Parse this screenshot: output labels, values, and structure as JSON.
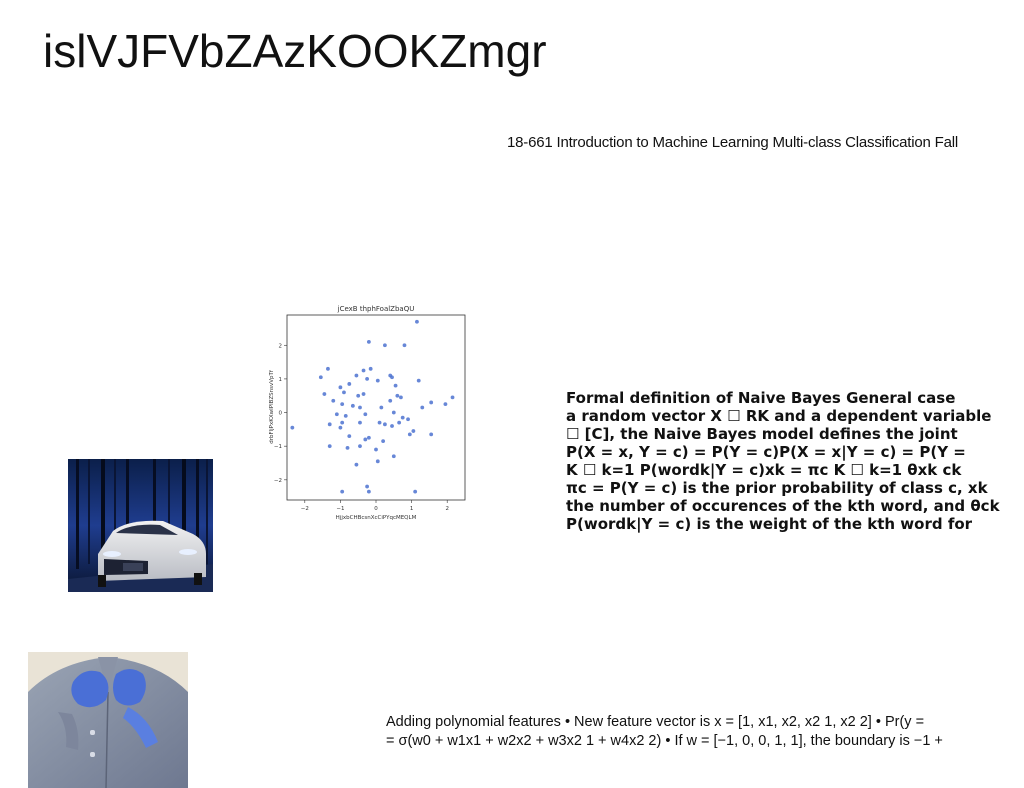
{
  "slide": {
    "title": "islVJFVbZAzKOOKZmgr",
    "course_line": "18-661 Introduction to Machine Learning Multi-class Classification Fall"
  },
  "formal_block": {
    "lines": [
      "Formal definition of Naive Bayes General case",
      "a random vector X ☐ RK and a dependent variable",
      "☐ [C], the Naive Bayes model defines the joint",
      "P(X = x, Y = c) = P(Y = c)P(X = x|Y = c) = P(Y =",
      "K ☐ k=1 P(wordk|Y = c)xk = πc K ☐ k=1 θxk ck",
      "πc = P(Y = c) is the prior probability of class c, xk",
      "the number of occurences of the kth word, and θck",
      "P(wordk|Y = c) is the weight of the kth word for"
    ]
  },
  "poly_block": {
    "lines": [
      "Adding polynomial features • New feature vector is x = [1, x1, x2, x2 1, x2 2] • Pr(y =",
      "= σ(w0 + w1x1 + w2x2 + w3x2 1 + w4x2 2) • If w = [−1, 0, 0, 1, 1], the boundary is −1 +"
    ]
  },
  "images": {
    "car": "car-photo",
    "person": "person-photo"
  },
  "chart_data": {
    "type": "scatter",
    "title": "jCexB thphFoalZbaQU",
    "xlabel": "HjjxbCHBcsnXcCiPYqcMEQLM",
    "ylabel": "drbFljPxKXwIPlBZSnsvVpTf",
    "xlim": [
      -2.5,
      2.5
    ],
    "ylim": [
      -2.6,
      2.9
    ],
    "xticks": [
      "−2",
      "−1",
      "0",
      "1",
      "2"
    ],
    "yticks": [
      "2",
      "1",
      "0",
      "−1",
      "−2"
    ],
    "xtick_values": [
      -2,
      -1,
      0,
      1,
      2
    ],
    "ytick_values": [
      2,
      1,
      0,
      -1,
      -2
    ],
    "color": "#4c72d0",
    "points": [
      [
        1.15,
        2.7
      ],
      [
        -0.2,
        2.1
      ],
      [
        0.25,
        2.0
      ],
      [
        0.8,
        2.0
      ],
      [
        -1.35,
        1.3
      ],
      [
        -1.55,
        1.05
      ],
      [
        -0.55,
        1.1
      ],
      [
        -0.35,
        1.25
      ],
      [
        -0.15,
        1.3
      ],
      [
        0.4,
        1.1
      ],
      [
        0.45,
        1.05
      ],
      [
        1.2,
        0.95
      ],
      [
        -0.75,
        0.85
      ],
      [
        -0.25,
        1.0
      ],
      [
        0.05,
        0.95
      ],
      [
        0.55,
        0.8
      ],
      [
        -1.45,
        0.55
      ],
      [
        -1.0,
        0.75
      ],
      [
        -0.9,
        0.6
      ],
      [
        -0.5,
        0.5
      ],
      [
        -0.35,
        0.55
      ],
      [
        0.6,
        0.5
      ],
      [
        0.7,
        0.45
      ],
      [
        2.15,
        0.45
      ],
      [
        1.95,
        0.25
      ],
      [
        -1.2,
        0.35
      ],
      [
        -0.95,
        0.25
      ],
      [
        -0.65,
        0.2
      ],
      [
        -0.45,
        0.15
      ],
      [
        0.15,
        0.15
      ],
      [
        0.4,
        0.35
      ],
      [
        1.3,
        0.15
      ],
      [
        1.55,
        0.3
      ],
      [
        -1.1,
        -0.05
      ],
      [
        -0.85,
        -0.1
      ],
      [
        -0.3,
        -0.05
      ],
      [
        0.5,
        0.0
      ],
      [
        0.75,
        -0.15
      ],
      [
        0.9,
        -0.2
      ],
      [
        -2.35,
        -0.45
      ],
      [
        -1.3,
        -0.35
      ],
      [
        -0.95,
        -0.3
      ],
      [
        -1.0,
        -0.45
      ],
      [
        -0.45,
        -0.3
      ],
      [
        0.1,
        -0.3
      ],
      [
        0.25,
        -0.35
      ],
      [
        0.45,
        -0.4
      ],
      [
        0.65,
        -0.3
      ],
      [
        1.05,
        -0.55
      ],
      [
        -0.75,
        -0.7
      ],
      [
        -0.3,
        -0.8
      ],
      [
        -0.2,
        -0.75
      ],
      [
        0.2,
        -0.85
      ],
      [
        0.95,
        -0.65
      ],
      [
        1.55,
        -0.65
      ],
      [
        -1.3,
        -1.0
      ],
      [
        -0.8,
        -1.05
      ],
      [
        -0.45,
        -1.0
      ],
      [
        0.0,
        -1.1
      ],
      [
        -0.55,
        -1.55
      ],
      [
        0.05,
        -1.45
      ],
      [
        0.5,
        -1.3
      ],
      [
        -0.95,
        -2.35
      ],
      [
        -0.25,
        -2.2
      ],
      [
        -0.2,
        -2.35
      ],
      [
        1.1,
        -2.35
      ]
    ]
  }
}
